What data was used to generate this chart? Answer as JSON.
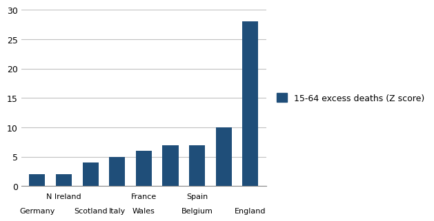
{
  "values": [
    2,
    2,
    4,
    5,
    6,
    7,
    7,
    10,
    28
  ],
  "labels_top": [
    "",
    "N Ireland",
    "",
    "",
    "France",
    "",
    "Spain",
    "",
    ""
  ],
  "labels_bottom": [
    "Germany",
    "",
    "Scotland",
    "Italy",
    "Wales",
    "",
    "Belgium",
    "",
    "England"
  ],
  "bar_color": "#1F4E79",
  "legend_label": "15-64 excess deaths (Z score)",
  "ylim": [
    0,
    30
  ],
  "yticks": [
    0,
    5,
    10,
    15,
    20,
    25,
    30
  ],
  "background_color": "#ffffff",
  "grid_color": "#c0c0c0",
  "label_fontsize": 8.0,
  "legend_fontsize": 9.0
}
